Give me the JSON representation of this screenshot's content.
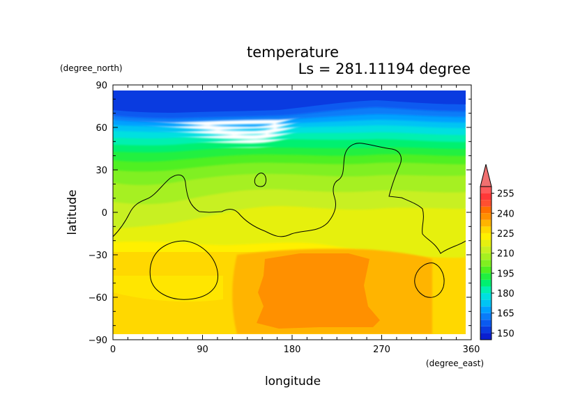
{
  "chart_data": {
    "type": "heatmap",
    "title": "temperature",
    "subtitle": "Ls = 281.11194 degree",
    "xlabel": "longitude",
    "ylabel": "latitude",
    "x_units": "(degree_east)",
    "y_units": "(degree_north)",
    "xlim": [
      0,
      360
    ],
    "ylim": [
      -90,
      90
    ],
    "x_ticks": [
      0,
      90,
      180,
      270,
      360
    ],
    "y_ticks": [
      90,
      60,
      30,
      0,
      -30,
      -60,
      -90
    ],
    "x_tick_labels": [
      "0",
      "90",
      "180",
      "270",
      "360"
    ],
    "y_tick_labels": [
      "90",
      "60",
      "30",
      "0",
      "−30",
      "−60",
      "−90"
    ],
    "colorbar": {
      "levels": [
        145,
        150,
        155,
        160,
        165,
        170,
        175,
        180,
        185,
        190,
        195,
        200,
        205,
        210,
        215,
        220,
        225,
        230,
        235,
        240,
        245,
        250,
        255,
        260
      ],
      "tick_values": [
        150,
        165,
        180,
        195,
        210,
        225,
        240,
        255
      ],
      "tick_labels": [
        "150",
        "165",
        "180",
        "195",
        "210",
        "225",
        "240",
        "255"
      ],
      "colors": [
        "#0a1fd0",
        "#0a3be0",
        "#0a5af0",
        "#0a7cf8",
        "#00a0ff",
        "#00c4f4",
        "#00e0e0",
        "#00f0b0",
        "#00f070",
        "#20f040",
        "#50f020",
        "#80f020",
        "#a6f020",
        "#c8f020",
        "#e6f010",
        "#fff000",
        "#ffd800",
        "#ffb400",
        "#ff9000",
        "#ff7000",
        "#ff5030",
        "#ff3838",
        "#ff5a5a"
      ],
      "overflow_color": "#f07070"
    },
    "grid": false
  }
}
